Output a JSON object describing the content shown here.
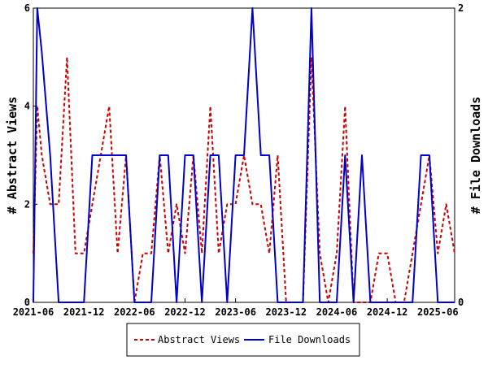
{
  "chart_data": {
    "type": "line",
    "title": "",
    "x_ticks": [
      "2021-06",
      "2021-12",
      "2022-06",
      "2022-12",
      "2023-06",
      "2023-12",
      "2024-06",
      "2024-12",
      "2025-06"
    ],
    "xlim": [
      "2021-06",
      "2025-08"
    ],
    "y_left": {
      "label": "# Abstract Views",
      "ticks": [
        "0",
        "2",
        "4",
        "6"
      ],
      "lim": [
        0,
        6
      ]
    },
    "y_right": {
      "label": "# File Downloads",
      "ticks": [
        "0",
        "2"
      ],
      "lim": [
        0,
        2
      ]
    },
    "grid": false,
    "legend_position": "bottom-center",
    "series": [
      {
        "name": "Abstract Views",
        "axis": "left",
        "color": "#cc0000",
        "style": "dashed",
        "points": [
          [
            "2021-06",
            1
          ],
          [
            "2021-06-15",
            4
          ],
          [
            "2021-07",
            3
          ],
          [
            "2021-08",
            2
          ],
          [
            "2021-09",
            2
          ],
          [
            "2021-10",
            5
          ],
          [
            "2021-11",
            1
          ],
          [
            "2021-12",
            1
          ],
          [
            "2022-01",
            2
          ],
          [
            "2022-02",
            3
          ],
          [
            "2022-03",
            4
          ],
          [
            "2022-04",
            1
          ],
          [
            "2022-05",
            3
          ],
          [
            "2022-06",
            0
          ],
          [
            "2022-07",
            1
          ],
          [
            "2022-08",
            1
          ],
          [
            "2022-09",
            3
          ],
          [
            "2022-10",
            1
          ],
          [
            "2022-11",
            2
          ],
          [
            "2022-12",
            1
          ],
          [
            "2023-01",
            3
          ],
          [
            "2023-02",
            1
          ],
          [
            "2023-03",
            4
          ],
          [
            "2023-04",
            1
          ],
          [
            "2023-05",
            2
          ],
          [
            "2023-06",
            2
          ],
          [
            "2023-07",
            3
          ],
          [
            "2023-08",
            2
          ],
          [
            "2023-09",
            2
          ],
          [
            "2023-10",
            1
          ],
          [
            "2023-11",
            3
          ],
          [
            "2023-12",
            0
          ],
          [
            "2024-01",
            0
          ],
          [
            "2024-02",
            0
          ],
          [
            "2024-03",
            5
          ],
          [
            "2024-04",
            1
          ],
          [
            "2024-05",
            0
          ],
          [
            "2024-06",
            1
          ],
          [
            "2024-07",
            4
          ],
          [
            "2024-08",
            0
          ],
          [
            "2024-09",
            0
          ],
          [
            "2024-10",
            0
          ],
          [
            "2024-11",
            1
          ],
          [
            "2024-12",
            1
          ],
          [
            "2025-01",
            0
          ],
          [
            "2025-02",
            0
          ],
          [
            "2025-03",
            1
          ],
          [
            "2025-04",
            2
          ],
          [
            "2025-05",
            3
          ],
          [
            "2025-06",
            1
          ],
          [
            "2025-07",
            2
          ],
          [
            "2025-08",
            1
          ]
        ]
      },
      {
        "name": "File Downloads",
        "axis": "right",
        "color": "#0000cc",
        "style": "solid",
        "points": [
          [
            "2021-06",
            0
          ],
          [
            "2021-06-08",
            1
          ],
          [
            "2021-06-15",
            2
          ],
          [
            "2021-07",
            1.7
          ],
          [
            "2021-08",
            1
          ],
          [
            "2021-09",
            0
          ],
          [
            "2021-10",
            0
          ],
          [
            "2021-11",
            0
          ],
          [
            "2021-12",
            0
          ],
          [
            "2022-01",
            1
          ],
          [
            "2022-02",
            1
          ],
          [
            "2022-03",
            1
          ],
          [
            "2022-04",
            1
          ],
          [
            "2022-05",
            1
          ],
          [
            "2022-06",
            0
          ],
          [
            "2022-07",
            0
          ],
          [
            "2022-08",
            0
          ],
          [
            "2022-09",
            1
          ],
          [
            "2022-10",
            1
          ],
          [
            "2022-11",
            0
          ],
          [
            "2022-12",
            1
          ],
          [
            "2023-01",
            1
          ],
          [
            "2023-02",
            0
          ],
          [
            "2023-03",
            1
          ],
          [
            "2023-04",
            1
          ],
          [
            "2023-05",
            0
          ],
          [
            "2023-06",
            1
          ],
          [
            "2023-07",
            1
          ],
          [
            "2023-08",
            2
          ],
          [
            "2023-09",
            1
          ],
          [
            "2023-10",
            1
          ],
          [
            "2023-11",
            0
          ],
          [
            "2023-12",
            0
          ],
          [
            "2024-01",
            0
          ],
          [
            "2024-02",
            0
          ],
          [
            "2024-03",
            2
          ],
          [
            "2024-04",
            0
          ],
          [
            "2024-05",
            0
          ],
          [
            "2024-06",
            0
          ],
          [
            "2024-07",
            1
          ],
          [
            "2024-08",
            0
          ],
          [
            "2024-09",
            1
          ],
          [
            "2024-10",
            0
          ],
          [
            "2024-11",
            0
          ],
          [
            "2024-12",
            0
          ],
          [
            "2025-01",
            0
          ],
          [
            "2025-02",
            0
          ],
          [
            "2025-03",
            0
          ],
          [
            "2025-04",
            1
          ],
          [
            "2025-05",
            1
          ],
          [
            "2025-06",
            0
          ],
          [
            "2025-07",
            0
          ],
          [
            "2025-08",
            0
          ]
        ]
      }
    ]
  }
}
